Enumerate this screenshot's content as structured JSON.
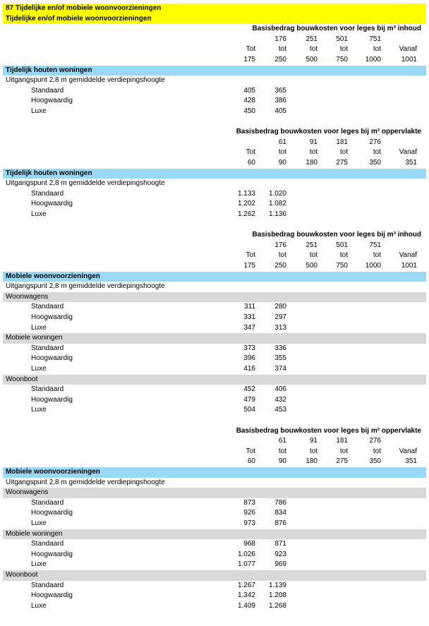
{
  "header": {
    "title": "87 Tijdelijke en/of mobiele woonvoorzieningen",
    "subtitle": "Tijdelijke en/of mobiele woonvoorzieningen"
  },
  "sections": [
    {
      "basis": "Basisbedrag bouwkosten voor leges bij m³ inhoud",
      "columns": [
        {
          "label": "Tot",
          "to": "175"
        },
        {
          "from": "176",
          "label": "tot",
          "to": "250"
        },
        {
          "from": "251",
          "label": "tot",
          "to": "500"
        },
        {
          "from": "501",
          "label": "tot",
          "to": "750"
        },
        {
          "from": "751",
          "label": "tot",
          "to": "1000"
        },
        {
          "label": "Vanaf",
          "to": "1001"
        }
      ],
      "group": "Tijdelijk houten woningen",
      "note": "Uitgangspunt 2,8 m gemiddelde verdiepingshoogte",
      "rows": [
        {
          "label": "Standaard",
          "values": [
            "405",
            "365"
          ]
        },
        {
          "label": "Hoogwaardig",
          "values": [
            "428",
            "386"
          ]
        },
        {
          "label": "Luxe",
          "values": [
            "450",
            "405"
          ]
        }
      ]
    },
    {
      "basis": "Basisbedrag bouwkosten voor leges bij m² oppervlakte",
      "columns": [
        {
          "label": "Tot",
          "to": "60"
        },
        {
          "from": "61",
          "label": "tot",
          "to": "90"
        },
        {
          "from": "91",
          "label": "tot",
          "to": "180"
        },
        {
          "from": "181",
          "label": "tot",
          "to": "275"
        },
        {
          "from": "276",
          "label": "tot",
          "to": "350"
        },
        {
          "label": "Vanaf",
          "to": "351"
        }
      ],
      "group": "Tijdelijk houten woningen",
      "note": "Uitgangspunt 2,8 m gemiddelde verdiepingshoogte",
      "rows": [
        {
          "label": "Standaard",
          "values": [
            "1.133",
            "1.020"
          ]
        },
        {
          "label": "Hoogwaardig",
          "values": [
            "1.202",
            "1.082"
          ]
        },
        {
          "label": "Luxe",
          "values": [
            "1.262",
            "1.136"
          ]
        }
      ]
    },
    {
      "basis": "Basisbedrag bouwkosten voor leges bij m³ inhoud",
      "columns": [
        {
          "label": "Tot",
          "to": "175"
        },
        {
          "from": "176",
          "label": "tot",
          "to": "250"
        },
        {
          "from": "251",
          "label": "tot",
          "to": "500"
        },
        {
          "from": "501",
          "label": "tot",
          "to": "750"
        },
        {
          "from": "751",
          "label": "tot",
          "to": "1000"
        },
        {
          "label": "Vanaf",
          "to": "1001"
        }
      ],
      "group": "Mobiele woonvoorzieningen",
      "note": "Uitgangspunt 2,8 m gemiddelde verdiepingshoogte",
      "blocks": [
        {
          "name": "Woonwagens",
          "rows": [
            {
              "label": "Standaard",
              "values": [
                "311",
                "280"
              ]
            },
            {
              "label": "Hoogwaardig",
              "values": [
                "331",
                "297"
              ]
            },
            {
              "label": "Luxe",
              "values": [
                "347",
                "313"
              ]
            }
          ]
        },
        {
          "name": "Mobiele woningen",
          "rows": [
            {
              "label": "Standaard",
              "values": [
                "373",
                "336"
              ]
            },
            {
              "label": "Hoogwaardig",
              "values": [
                "396",
                "355"
              ]
            },
            {
              "label": "Luxe",
              "values": [
                "416",
                "374"
              ]
            }
          ]
        },
        {
          "name": "Woonboot",
          "rows": [
            {
              "label": "Standaard",
              "values": [
                "452",
                "406"
              ]
            },
            {
              "label": "Hoogwaardig",
              "values": [
                "479",
                "432"
              ]
            },
            {
              "label": "Luxe",
              "values": [
                "504",
                "453"
              ]
            }
          ]
        }
      ]
    },
    {
      "basis": "Basisbedrag bouwkosten voor leges bij m² oppervlakte",
      "columns": [
        {
          "label": "Tot",
          "to": "60"
        },
        {
          "from": "61",
          "label": "tot",
          "to": "90"
        },
        {
          "from": "91",
          "label": "tot",
          "to": "180"
        },
        {
          "from": "181",
          "label": "tot",
          "to": "275"
        },
        {
          "from": "276",
          "label": "tot",
          "to": "350"
        },
        {
          "label": "Vanaf",
          "to": "351"
        }
      ],
      "group": "Mobiele woonvoorzieningen",
      "note": "Uitgangspunt 2,8 m gemiddelde verdiepingshoogte",
      "blocks": [
        {
          "name": "Woonwagens",
          "rows": [
            {
              "label": "Standaard",
              "values": [
                "873",
                "786"
              ]
            },
            {
              "label": "Hoogwaardig",
              "values": [
                "926",
                "834"
              ]
            },
            {
              "label": "Luxe",
              "values": [
                "973",
                "876"
              ]
            }
          ]
        },
        {
          "name": "Mobiele woningen",
          "rows": [
            {
              "label": "Standaard",
              "values": [
                "968",
                "871"
              ]
            },
            {
              "label": "Hoogwaardig",
              "values": [
                "1.026",
                "923"
              ]
            },
            {
              "label": "Luxe",
              "values": [
                "1.077",
                "969"
              ]
            }
          ]
        },
        {
          "name": "Woonboot",
          "rows": [
            {
              "label": "Standaard",
              "values": [
                "1.267",
                "1.139"
              ]
            },
            {
              "label": "Hoogwaardig",
              "values": [
                "1.342",
                "1.208"
              ]
            },
            {
              "label": "Luxe",
              "values": [
                "1.409",
                "1.268"
              ]
            }
          ]
        }
      ]
    }
  ]
}
